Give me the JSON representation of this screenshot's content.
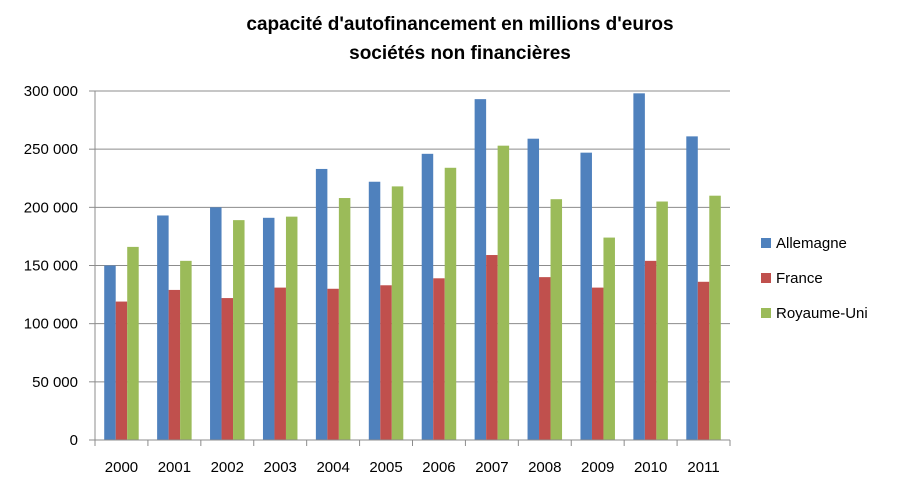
{
  "chart_data": {
    "type": "bar",
    "title": [
      "capacité d'autofinancement  en millions d'euros",
      "sociétés non financières"
    ],
    "xlabel": "",
    "ylabel": "",
    "ylim": [
      0,
      300000
    ],
    "yticks": [
      0,
      50000,
      100000,
      150000,
      200000,
      250000,
      300000
    ],
    "ytick_labels": [
      "0",
      "50 000",
      "100 000",
      "150 000",
      "200 000",
      "250 000",
      "300 000"
    ],
    "grid": true,
    "legend_position": "right",
    "categories": [
      "2000",
      "2001",
      "2002",
      "2003",
      "2004",
      "2005",
      "2006",
      "2007",
      "2008",
      "2009",
      "2010",
      "2011"
    ],
    "series": [
      {
        "name": "Allemagne",
        "color": "#4F81BD",
        "values": [
          150000,
          193000,
          200000,
          191000,
          233000,
          222000,
          246000,
          293000,
          259000,
          247000,
          298000,
          261000
        ]
      },
      {
        "name": "France",
        "color": "#C0504D",
        "values": [
          119000,
          129000,
          122000,
          131000,
          130000,
          133000,
          139000,
          159000,
          140000,
          131000,
          154000,
          136000
        ]
      },
      {
        "name": "Royaume-Uni",
        "color": "#9BBB59",
        "values": [
          166000,
          154000,
          189000,
          192000,
          208000,
          218000,
          234000,
          253000,
          207000,
          174000,
          205000,
          210000
        ]
      }
    ]
  }
}
